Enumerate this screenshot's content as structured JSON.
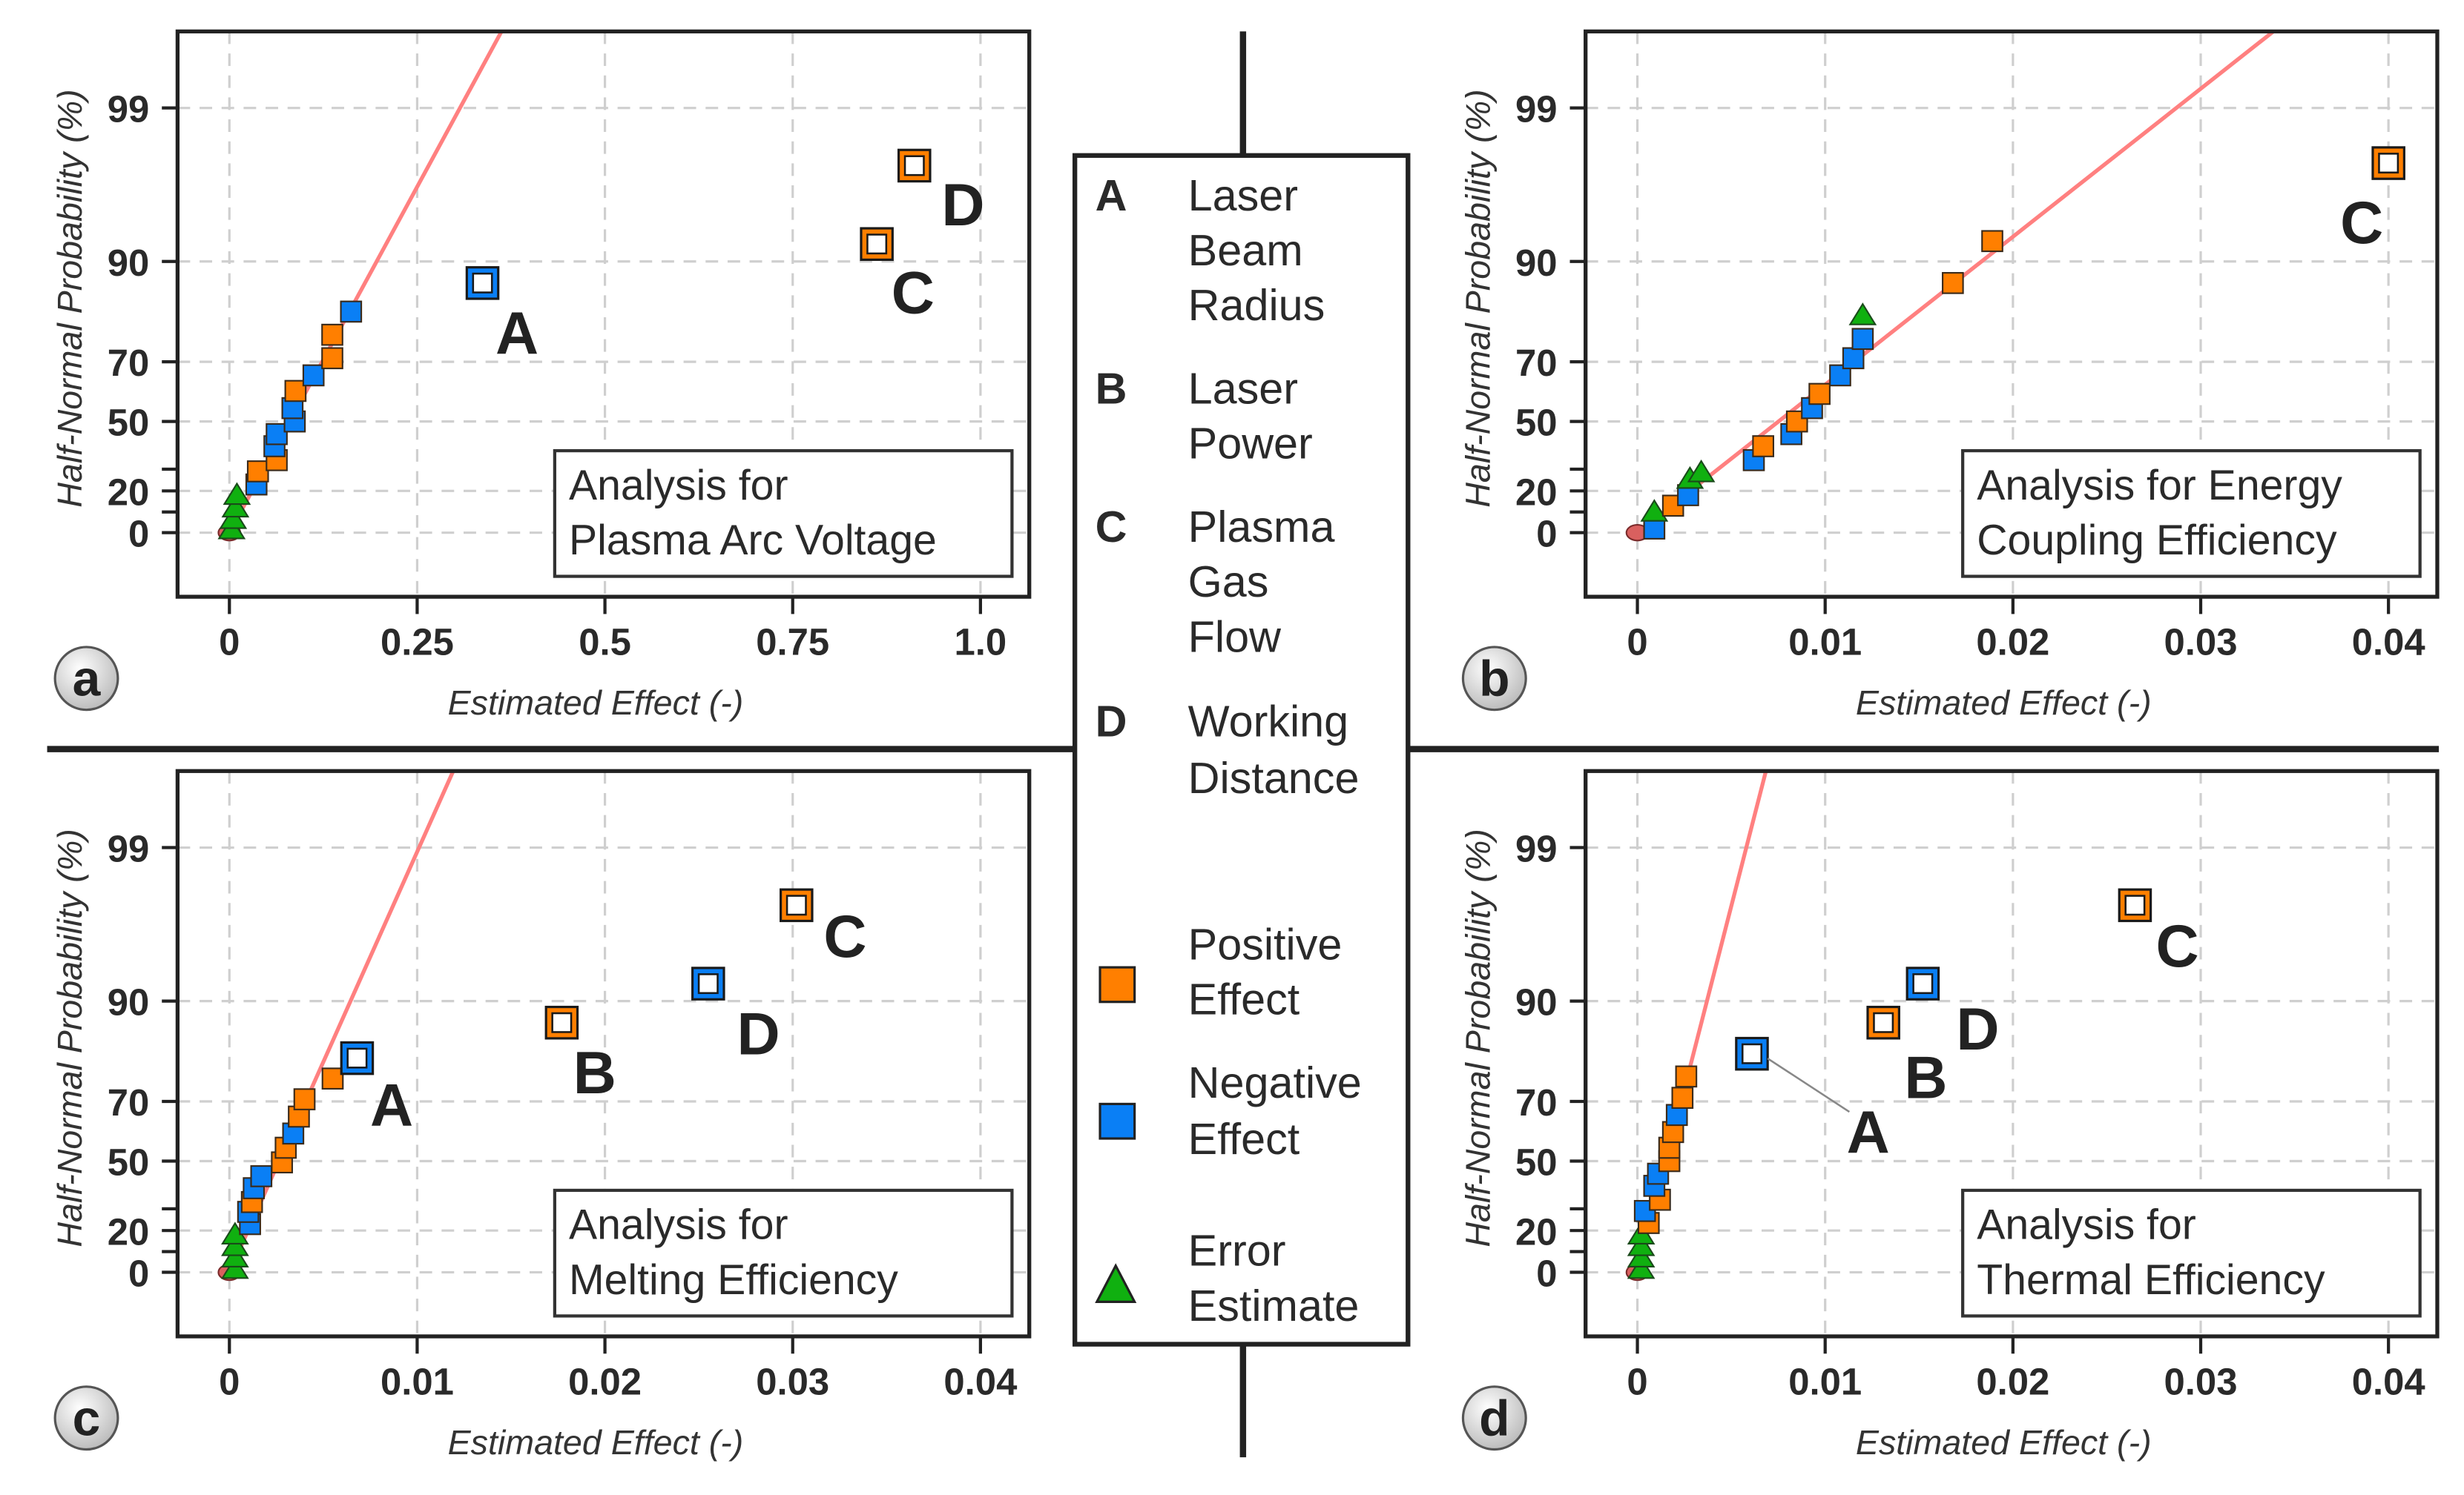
{
  "colors": {
    "positive": "#ff7f00",
    "negative": "#0a7ff5",
    "error": "#10b010",
    "fit_line": "#ff8080",
    "origin": "#d9605f"
  },
  "axis_labels": {
    "x": "Estimated Effect (-)",
    "y": "Half-Normal Probability (%)"
  },
  "y_tick_labels": [
    "0",
    "20",
    "50",
    "70",
    "90",
    "99"
  ],
  "legend": {
    "factors": [
      {
        "letter": "A",
        "lines": [
          "Laser",
          "Beam",
          "Radius"
        ]
      },
      {
        "letter": "B",
        "lines": [
          "Laser",
          "Power"
        ]
      },
      {
        "letter": "C",
        "lines": [
          "Plasma",
          "Gas",
          "Flow"
        ]
      },
      {
        "letter": "D",
        "lines": [
          "Working",
          "Distance"
        ]
      }
    ],
    "effects": [
      {
        "type": "positive",
        "lines": [
          "Positive",
          "Effect"
        ]
      },
      {
        "type": "negative",
        "lines": [
          "Negative",
          "Effect"
        ]
      },
      {
        "type": "error",
        "lines": [
          "Error",
          "Estimate"
        ]
      }
    ]
  },
  "chart_data": [
    {
      "panel": "a",
      "type": "scatter",
      "title": [
        "Analysis for",
        "Plasma Arc Voltage"
      ],
      "xlabel": "Estimated Effect (-)",
      "ylabel": "Half-Normal Probability (%)",
      "xlim": [
        -0.069,
        1.065
      ],
      "xticks": [
        0,
        0.25,
        0.5,
        0.75,
        1.0
      ],
      "xtick_labels": [
        "0",
        "0.25",
        "0.5",
        "0.75",
        "1.0"
      ],
      "yticks": [
        0,
        20,
        50,
        70,
        90,
        99
      ],
      "minor_yticks": [
        10,
        30
      ],
      "grid": true,
      "fit_line": [
        [
          0,
          0
        ],
        [
          0.307,
          99
        ]
      ],
      "points": [
        {
          "x": 0,
          "p": 0,
          "type": "origin"
        },
        {
          "x": 0.003,
          "p": 1,
          "type": "error"
        },
        {
          "x": 0.005,
          "p": 6,
          "type": "error"
        },
        {
          "x": 0.008,
          "p": 11.5,
          "type": "error"
        },
        {
          "x": 0.01,
          "p": 17.5,
          "type": "error"
        },
        {
          "x": 0.036,
          "p": 23,
          "type": "negative"
        },
        {
          "x": 0.038,
          "p": 29,
          "type": "positive"
        },
        {
          "x": 0.063,
          "p": 34,
          "type": "positive"
        },
        {
          "x": 0.06,
          "p": 40,
          "type": "negative"
        },
        {
          "x": 0.063,
          "p": 45,
          "type": "negative"
        },
        {
          "x": 0.087,
          "p": 50,
          "type": "negative"
        },
        {
          "x": 0.084,
          "p": 55,
          "type": "negative"
        },
        {
          "x": 0.088,
          "p": 61,
          "type": "positive"
        },
        {
          "x": 0.112,
          "p": 66,
          "type": "negative"
        },
        {
          "x": 0.137,
          "p": 71,
          "type": "positive"
        },
        {
          "x": 0.137,
          "p": 77,
          "type": "positive"
        },
        {
          "x": 0.162,
          "p": 82,
          "type": "negative"
        },
        {
          "x": 0.337,
          "p": 87,
          "type": "negative",
          "highlight": true,
          "label": "A"
        },
        {
          "x": 0.862,
          "p": 92,
          "type": "positive",
          "highlight": true,
          "label": "C"
        },
        {
          "x": 0.912,
          "p": 97.4,
          "type": "positive",
          "highlight": true,
          "label": "D"
        }
      ]
    },
    {
      "panel": "b",
      "type": "scatter",
      "title": [
        "Analysis for Energy",
        "Coupling Efficiency"
      ],
      "xlabel": "Estimated Effect (-)",
      "ylabel": "Half-Normal Probability (%)",
      "xlim": [
        -0.00276,
        0.0426
      ],
      "xticks": [
        0,
        0.01,
        0.02,
        0.03,
        0.04
      ],
      "xtick_labels": [
        "0",
        "0.01",
        "0.02",
        "0.03",
        "0.04"
      ],
      "yticks": [
        0,
        20,
        50,
        70,
        90,
        99
      ],
      "minor_yticks": [
        10,
        30
      ],
      "grid": true,
      "fit_line": [
        [
          0,
          0
        ],
        [
          0.0287,
          99
        ]
      ],
      "points": [
        {
          "x": 0,
          "p": 0,
          "type": "origin"
        },
        {
          "x": 0.0009,
          "p": 2,
          "type": "negative"
        },
        {
          "x": 0.0009,
          "p": 9.5,
          "type": "error"
        },
        {
          "x": 0.0019,
          "p": 13,
          "type": "positive"
        },
        {
          "x": 0.0027,
          "p": 18,
          "type": "negative"
        },
        {
          "x": 0.0028,
          "p": 25,
          "type": "error"
        },
        {
          "x": 0.0034,
          "p": 28,
          "type": "error"
        },
        {
          "x": 0.0062,
          "p": 34,
          "type": "negative"
        },
        {
          "x": 0.0067,
          "p": 40,
          "type": "positive"
        },
        {
          "x": 0.0082,
          "p": 45,
          "type": "negative"
        },
        {
          "x": 0.0085,
          "p": 50,
          "type": "positive"
        },
        {
          "x": 0.0093,
          "p": 55,
          "type": "negative"
        },
        {
          "x": 0.0097,
          "p": 60,
          "type": "positive"
        },
        {
          "x": 0.0108,
          "p": 66,
          "type": "negative"
        },
        {
          "x": 0.0115,
          "p": 71,
          "type": "negative"
        },
        {
          "x": 0.012,
          "p": 76,
          "type": "negative"
        },
        {
          "x": 0.012,
          "p": 81,
          "type": "error"
        },
        {
          "x": 0.0168,
          "p": 87,
          "type": "positive"
        },
        {
          "x": 0.0189,
          "p": 92.3,
          "type": "positive"
        },
        {
          "x": 0.04,
          "p": 97.5,
          "type": "positive",
          "highlight": true,
          "label": "C"
        }
      ]
    },
    {
      "panel": "c",
      "type": "scatter",
      "title": [
        "Analysis for",
        "Melting Efficiency"
      ],
      "xlabel": "Estimated Effect (-)",
      "ylabel": "Half-Normal Probability (%)",
      "xlim": [
        -0.00276,
        0.0426
      ],
      "xticks": [
        0,
        0.01,
        0.02,
        0.03,
        0.04
      ],
      "xtick_labels": [
        "0",
        "0.01",
        "0.02",
        "0.03",
        "0.04"
      ],
      "yticks": [
        0,
        20,
        50,
        70,
        90,
        99
      ],
      "minor_yticks": [
        10,
        30
      ],
      "grid": true,
      "fit_line": [
        [
          0,
          0
        ],
        [
          0.0101,
          99
        ]
      ],
      "points": [
        {
          "x": 0,
          "p": 0,
          "type": "origin"
        },
        {
          "x": 0.0003,
          "p": 1,
          "type": "error"
        },
        {
          "x": 0.0003,
          "p": 6.5,
          "type": "error"
        },
        {
          "x": 0.0003,
          "p": 12,
          "type": "error"
        },
        {
          "x": 0.0003,
          "p": 17.5,
          "type": "error"
        },
        {
          "x": 0.0011,
          "p": 23,
          "type": "negative"
        },
        {
          "x": 0.001,
          "p": 28.6,
          "type": "negative"
        },
        {
          "x": 0.0012,
          "p": 33,
          "type": "positive"
        },
        {
          "x": 0.0013,
          "p": 39,
          "type": "negative"
        },
        {
          "x": 0.0017,
          "p": 44,
          "type": "negative"
        },
        {
          "x": 0.0028,
          "p": 49.5,
          "type": "positive"
        },
        {
          "x": 0.003,
          "p": 55,
          "type": "positive"
        },
        {
          "x": 0.0034,
          "p": 60,
          "type": "negative"
        },
        {
          "x": 0.0037,
          "p": 65.5,
          "type": "positive"
        },
        {
          "x": 0.004,
          "p": 70.6,
          "type": "positive"
        },
        {
          "x": 0.0055,
          "p": 76,
          "type": "positive"
        },
        {
          "x": 0.0068,
          "p": 80.6,
          "type": "negative",
          "highlight": true,
          "label": "A"
        },
        {
          "x": 0.0177,
          "p": 87,
          "type": "positive",
          "highlight": true,
          "label": "B"
        },
        {
          "x": 0.0255,
          "p": 92,
          "type": "negative",
          "highlight": true,
          "label": "D"
        },
        {
          "x": 0.0302,
          "p": 97.4,
          "type": "positive",
          "highlight": true,
          "label": "C"
        }
      ]
    },
    {
      "panel": "d",
      "type": "scatter",
      "title": [
        "Analysis for",
        "Thermal Efficiency"
      ],
      "xlabel": "Estimated Effect (-)",
      "ylabel": "Half-Normal Probability (%)",
      "xlim": [
        -0.00276,
        0.0426
      ],
      "xticks": [
        0,
        0.01,
        0.02,
        0.03,
        0.04
      ],
      "xtick_labels": [
        "0",
        "0.01",
        "0.02",
        "0.03",
        "0.04"
      ],
      "yticks": [
        0,
        20,
        50,
        70,
        90,
        99
      ],
      "minor_yticks": [
        10,
        30
      ],
      "grid": true,
      "fit_line": [
        [
          0,
          0
        ],
        [
          0.0058,
          99
        ]
      ],
      "points": [
        {
          "x": 0,
          "p": 0,
          "type": "origin"
        },
        {
          "x": 0.0002,
          "p": 1,
          "type": "error"
        },
        {
          "x": 0.0002,
          "p": 6.5,
          "type": "error"
        },
        {
          "x": 0.0002,
          "p": 12,
          "type": "error"
        },
        {
          "x": 0.0002,
          "p": 17.5,
          "type": "error"
        },
        {
          "x": 0.0006,
          "p": 23.5,
          "type": "positive"
        },
        {
          "x": 0.0004,
          "p": 29,
          "type": "negative"
        },
        {
          "x": 0.0012,
          "p": 34,
          "type": "positive"
        },
        {
          "x": 0.0009,
          "p": 40,
          "type": "negative"
        },
        {
          "x": 0.0011,
          "p": 45,
          "type": "negative"
        },
        {
          "x": 0.0017,
          "p": 50,
          "type": "positive"
        },
        {
          "x": 0.0017,
          "p": 55,
          "type": "positive"
        },
        {
          "x": 0.0019,
          "p": 60.5,
          "type": "positive"
        },
        {
          "x": 0.0021,
          "p": 66,
          "type": "negative"
        },
        {
          "x": 0.0024,
          "p": 71,
          "type": "positive"
        },
        {
          "x": 0.0026,
          "p": 76.5,
          "type": "positive"
        },
        {
          "x": 0.0061,
          "p": 81.5,
          "type": "negative",
          "highlight": true,
          "label": "A"
        },
        {
          "x": 0.0131,
          "p": 87,
          "type": "positive",
          "highlight": true,
          "label": "B"
        },
        {
          "x": 0.0152,
          "p": 92,
          "type": "negative",
          "highlight": true,
          "label": "D"
        },
        {
          "x": 0.0265,
          "p": 97.4,
          "type": "positive",
          "highlight": true,
          "label": "C"
        }
      ]
    }
  ]
}
